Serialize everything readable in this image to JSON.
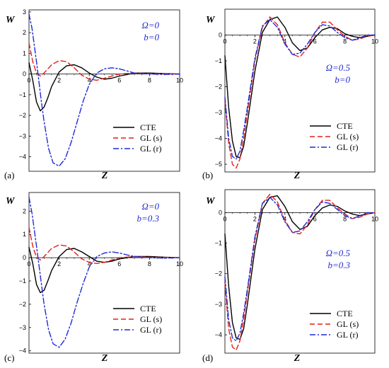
{
  "colors": {
    "CTE": "#000000",
    "GL (s)": "#e0201b",
    "GL (r)": "#1f2ad6"
  },
  "chart_data": [
    {
      "type": "line",
      "panel_label": "(a)",
      "xlabel": "Z",
      "ylabel": "W",
      "xlim": [
        0,
        10
      ],
      "ylim": [
        -4.7,
        3.1
      ],
      "xticks": [
        0,
        2,
        4,
        6,
        8,
        10
      ],
      "yticks": [
        -4,
        -3,
        -2,
        -1,
        0,
        1,
        2,
        3
      ],
      "params": [
        "Ω=0",
        "b=0"
      ],
      "legend_position": "lower-right",
      "series": [
        {
          "name": "CTE",
          "style": "solid",
          "x": [
            0,
            0.25,
            0.5,
            0.75,
            1,
            1.25,
            1.5,
            2,
            2.5,
            3,
            3.5,
            4,
            4.5,
            5,
            5.5,
            6,
            7,
            8,
            9,
            10
          ],
          "y": [
            0.55,
            -0.3,
            -1.35,
            -1.78,
            -1.6,
            -1.15,
            -0.6,
            0.1,
            0.4,
            0.45,
            0.3,
            0.05,
            -0.15,
            -0.25,
            -0.2,
            -0.1,
            0.05,
            0.05,
            0.02,
            0
          ]
        },
        {
          "name": "GL (s)",
          "style": "dash",
          "x": [
            0,
            0.25,
            0.5,
            0.75,
            1,
            1.5,
            2,
            2.5,
            3,
            3.5,
            4,
            4.5,
            5,
            5.5,
            6,
            7,
            8,
            9,
            10
          ],
          "y": [
            1.5,
            0.6,
            0.05,
            -0.1,
            0.05,
            0.45,
            0.65,
            0.6,
            0.3,
            -0.05,
            -0.25,
            -0.3,
            -0.2,
            -0.1,
            0,
            0.05,
            0.02,
            0.01,
            0
          ]
        },
        {
          "name": "GL (r)",
          "style": "dashdot",
          "x": [
            0,
            0.2,
            0.5,
            0.8,
            1,
            1.3,
            1.6,
            2,
            2.4,
            2.8,
            3.2,
            3.6,
            4,
            4.5,
            5,
            5.5,
            6,
            6.5,
            7,
            8,
            9,
            10
          ],
          "y": [
            2.9,
            2.2,
            0.6,
            -1.2,
            -2.3,
            -3.6,
            -4.3,
            -4.45,
            -4.1,
            -3.3,
            -2.3,
            -1.3,
            -0.5,
            0.05,
            0.25,
            0.3,
            0.25,
            0.15,
            0.05,
            0,
            -0.02,
            0
          ]
        }
      ]
    },
    {
      "type": "line",
      "panel_label": "(b)",
      "xlabel": "Z",
      "ylabel": "W",
      "xlim": [
        0,
        10
      ],
      "ylim": [
        -5.3,
        1.0
      ],
      "xticks": [
        0,
        2,
        4,
        6,
        8,
        10
      ],
      "yticks": [
        -5,
        -4,
        -3,
        -2,
        -1,
        0
      ],
      "params": [
        "Ω=0.5",
        "b=0"
      ],
      "legend_position": "lower-right",
      "series": [
        {
          "name": "CTE",
          "style": "solid",
          "x": [
            0,
            0.25,
            0.5,
            0.75,
            1,
            1.25,
            1.5,
            2,
            2.5,
            3,
            3.5,
            4,
            4.5,
            5,
            5.5,
            6,
            6.5,
            7,
            7.5,
            8,
            8.5,
            9,
            9.5,
            10
          ],
          "y": [
            -0.8,
            -2.8,
            -4.1,
            -4.7,
            -4.75,
            -4.3,
            -3.4,
            -1.4,
            0.1,
            0.6,
            0.7,
            0.3,
            -0.3,
            -0.6,
            -0.5,
            -0.1,
            0.2,
            0.3,
            0.25,
            0.05,
            -0.05,
            -0.1,
            -0.05,
            0
          ]
        },
        {
          "name": "GL (s)",
          "style": "dash",
          "x": [
            0,
            0.25,
            0.5,
            0.75,
            1,
            1.25,
            1.5,
            2,
            2.5,
            3,
            3.5,
            4,
            4.5,
            5,
            5.5,
            6,
            6.5,
            7,
            7.5,
            8,
            8.5,
            9,
            9.5,
            10
          ],
          "y": [
            -2.5,
            -4.2,
            -5.0,
            -5.15,
            -4.8,
            -4.0,
            -3.0,
            -1.0,
            0.3,
            0.7,
            0.4,
            -0.3,
            -0.75,
            -0.85,
            -0.5,
            0.1,
            0.5,
            0.5,
            0.2,
            -0.05,
            -0.2,
            -0.15,
            -0.05,
            0
          ]
        },
        {
          "name": "GL (r)",
          "style": "dashdot",
          "x": [
            0,
            0.25,
            0.5,
            0.75,
            1,
            1.25,
            1.5,
            2,
            2.5,
            3,
            3.5,
            4,
            4.5,
            5,
            5.5,
            6,
            6.5,
            7,
            7.5,
            8,
            8.5,
            9,
            9.5,
            10
          ],
          "y": [
            -2.4,
            -4.0,
            -4.7,
            -4.8,
            -4.5,
            -3.7,
            -2.8,
            -0.9,
            0.35,
            0.6,
            0.3,
            -0.35,
            -0.75,
            -0.7,
            -0.35,
            0.1,
            0.4,
            0.35,
            0.1,
            -0.1,
            -0.2,
            -0.1,
            0,
            0
          ]
        }
      ]
    },
    {
      "type": "line",
      "panel_label": "(c)",
      "xlabel": "Z",
      "ylabel": "W",
      "xlim": [
        0,
        10
      ],
      "ylim": [
        -4.1,
        2.8
      ],
      "xticks": [
        0,
        2,
        4,
        6,
        8,
        10
      ],
      "yticks": [
        -4,
        -3,
        -2,
        -1,
        0,
        1,
        2
      ],
      "params": [
        "Ω=0",
        "b=0.3"
      ],
      "legend_position": "lower-right",
      "series": [
        {
          "name": "CTE",
          "style": "solid",
          "x": [
            0,
            0.25,
            0.5,
            0.75,
            1,
            1.25,
            1.5,
            2,
            2.5,
            3,
            3.5,
            4,
            4.5,
            5,
            5.5,
            6,
            7,
            8,
            9,
            10
          ],
          "y": [
            0.45,
            -0.25,
            -1.15,
            -1.5,
            -1.4,
            -1.0,
            -0.55,
            0.05,
            0.35,
            0.4,
            0.25,
            0.05,
            -0.15,
            -0.2,
            -0.15,
            -0.05,
            0.05,
            0.05,
            0.02,
            0
          ]
        },
        {
          "name": "GL (s)",
          "style": "dash",
          "x": [
            0,
            0.25,
            0.5,
            0.75,
            1,
            1.5,
            2,
            2.5,
            3,
            3.5,
            4,
            4.5,
            5,
            5.5,
            6,
            7,
            8,
            9,
            10
          ],
          "y": [
            1.3,
            0.5,
            0.0,
            -0.1,
            0.05,
            0.4,
            0.55,
            0.5,
            0.25,
            -0.05,
            -0.2,
            -0.25,
            -0.2,
            -0.1,
            0,
            0.05,
            0.02,
            0.01,
            0
          ]
        },
        {
          "name": "GL (r)",
          "style": "dashdot",
          "x": [
            0,
            0.2,
            0.5,
            0.8,
            1,
            1.3,
            1.6,
            2,
            2.4,
            2.8,
            3.2,
            3.6,
            4,
            4.5,
            5,
            5.5,
            6,
            6.5,
            7,
            8,
            9,
            10
          ],
          "y": [
            2.6,
            1.9,
            0.5,
            -1.0,
            -2.0,
            -3.1,
            -3.7,
            -3.85,
            -3.5,
            -2.8,
            -1.9,
            -1.1,
            -0.4,
            0.05,
            0.2,
            0.25,
            0.2,
            0.12,
            0.05,
            0,
            -0.02,
            0
          ]
        }
      ]
    },
    {
      "type": "line",
      "panel_label": "(d)",
      "xlabel": "Z",
      "ylabel": "W",
      "xlim": [
        0,
        10
      ],
      "ylim": [
        -4.6,
        0.75
      ],
      "xticks": [
        0,
        2,
        4,
        6,
        8,
        10
      ],
      "yticks": [
        -4,
        -3,
        -2,
        -1,
        0
      ],
      "params": [
        "Ω=0.5",
        "b=0.3"
      ],
      "legend_position": "lower-right",
      "series": [
        {
          "name": "CTE",
          "style": "solid",
          "x": [
            0,
            0.25,
            0.5,
            0.75,
            1,
            1.25,
            1.5,
            2,
            2.5,
            3,
            3.5,
            4,
            4.5,
            5,
            5.5,
            6,
            6.5,
            7,
            7.5,
            8,
            8.5,
            9,
            9.5,
            10
          ],
          "y": [
            -0.7,
            -2.4,
            -3.6,
            -4.1,
            -4.15,
            -3.8,
            -3.0,
            -1.2,
            0.1,
            0.5,
            0.55,
            0.2,
            -0.3,
            -0.55,
            -0.45,
            -0.1,
            0.15,
            0.25,
            0.2,
            0.05,
            -0.05,
            -0.1,
            -0.05,
            0
          ]
        },
        {
          "name": "GL (s)",
          "style": "dash",
          "x": [
            0,
            0.25,
            0.5,
            0.75,
            1,
            1.25,
            1.5,
            2,
            2.5,
            3,
            3.5,
            4,
            4.5,
            5,
            5.5,
            6,
            6.5,
            7,
            7.5,
            8,
            8.5,
            9,
            9.5,
            10
          ],
          "y": [
            -2.3,
            -3.8,
            -4.4,
            -4.5,
            -4.2,
            -3.5,
            -2.6,
            -0.9,
            0.3,
            0.6,
            0.35,
            -0.25,
            -0.65,
            -0.7,
            -0.4,
            0.1,
            0.4,
            0.4,
            0.15,
            -0.05,
            -0.2,
            -0.15,
            -0.05,
            0
          ]
        },
        {
          "name": "GL (r)",
          "style": "dashdot",
          "x": [
            0,
            0.25,
            0.5,
            0.75,
            1,
            1.25,
            1.5,
            2,
            2.5,
            3,
            3.5,
            4,
            4.5,
            5,
            5.5,
            6,
            6.5,
            7,
            7.5,
            8,
            8.5,
            9,
            9.5,
            10
          ],
          "y": [
            -2.1,
            -3.5,
            -4.1,
            -4.2,
            -3.95,
            -3.3,
            -2.5,
            -0.8,
            0.3,
            0.5,
            0.25,
            -0.3,
            -0.65,
            -0.6,
            -0.3,
            0.1,
            0.35,
            0.3,
            0.1,
            -0.1,
            -0.2,
            -0.1,
            0,
            0
          ]
        }
      ]
    }
  ]
}
